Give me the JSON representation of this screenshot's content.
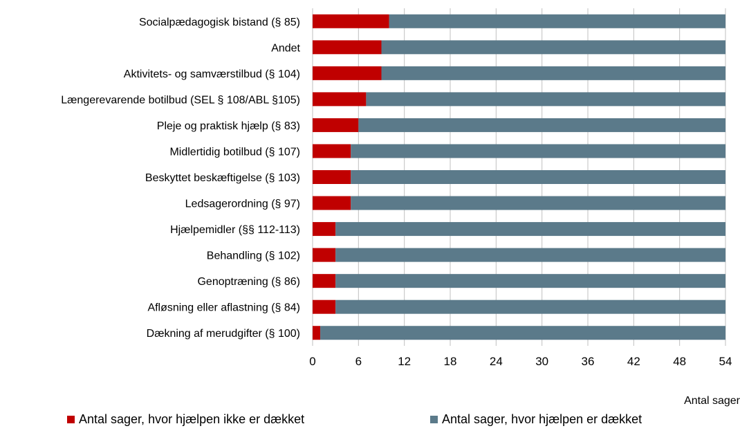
{
  "chart_data": {
    "type": "bar",
    "orientation": "horizontal",
    "stacked": true,
    "categories": [
      "Socialpædagogisk bistand (§ 85)",
      "Andet",
      "Aktivitets- og samværstilbud (§ 104)",
      "Længerevarende botilbud (SEL § 108/ABL §105)",
      "Pleje og praktisk hjælp (§ 83)",
      "Midlertidig botilbud (§ 107)",
      "Beskyttet beskæftigelse (§ 103)",
      "Ledsagerordning (§ 97)",
      "Hjælpemidler (§§ 112-113)",
      "Behandling (§ 102)",
      "Genoptræning (§ 86)",
      "Afløsning eller aflastning (§ 84)",
      "Dækning af merudgifter (§ 100)"
    ],
    "series": [
      {
        "name": "Antal sager, hvor hjælpen ikke er dækket",
        "color": "#c00000",
        "values": [
          10,
          9,
          9,
          7,
          6,
          5,
          5,
          5,
          3,
          3,
          3,
          3,
          1
        ]
      },
      {
        "name": "Antal sager, hvor hjælpen er dækket",
        "color": "#5b7a8a",
        "values": [
          44,
          45,
          45,
          47,
          48,
          49,
          49,
          49,
          51,
          51,
          51,
          51,
          53
        ]
      }
    ],
    "xlabel": "Antal sager",
    "xlim": [
      0,
      54
    ],
    "xticks": [
      0,
      6,
      12,
      18,
      24,
      30,
      36,
      42,
      48,
      54
    ],
    "grid": true,
    "legend_position": "bottom"
  }
}
